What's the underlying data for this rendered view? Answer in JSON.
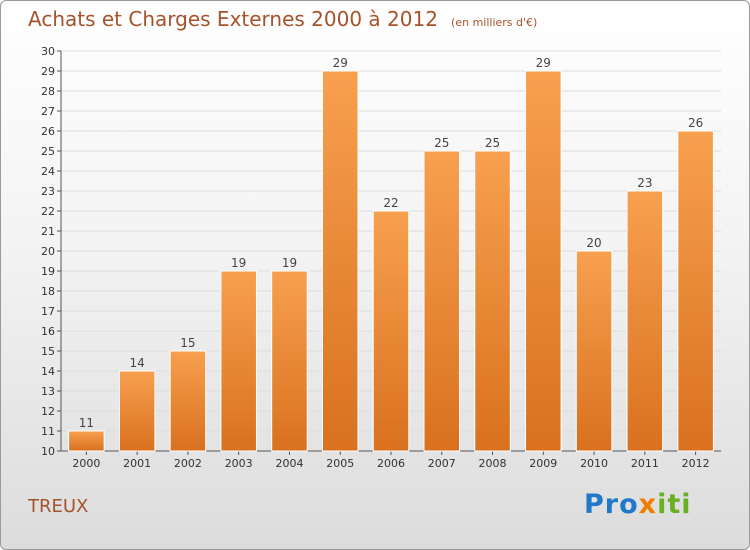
{
  "header": {
    "title": "Achats et Charges Externes 2000 à 2012",
    "unit": "(en milliers d'€)"
  },
  "footer": {
    "commune": "TREUX",
    "logo_text": "Proxiti"
  },
  "colors": {
    "title": "#a5532a",
    "bar_light": "#f7a04f",
    "bar_dark": "#d9711f",
    "grid": "#dddddd"
  },
  "chart_data": {
    "type": "bar",
    "title": "Achats et Charges Externes 2000 à 2012",
    "subtitle": "(en milliers d'€)",
    "categories": [
      "2000",
      "2001",
      "2002",
      "2003",
      "2004",
      "2005",
      "2006",
      "2007",
      "2008",
      "2009",
      "2010",
      "2011",
      "2012"
    ],
    "values": [
      11,
      14,
      15,
      19,
      19,
      29,
      22,
      25,
      25,
      29,
      20,
      23,
      26
    ],
    "ylim": [
      10,
      30
    ],
    "yticks": [
      10,
      11,
      12,
      13,
      14,
      15,
      16,
      17,
      18,
      19,
      20,
      21,
      22,
      23,
      24,
      25,
      26,
      27,
      28,
      29,
      30
    ],
    "xlabel": "",
    "ylabel": "",
    "grid": true,
    "legend": "none"
  }
}
